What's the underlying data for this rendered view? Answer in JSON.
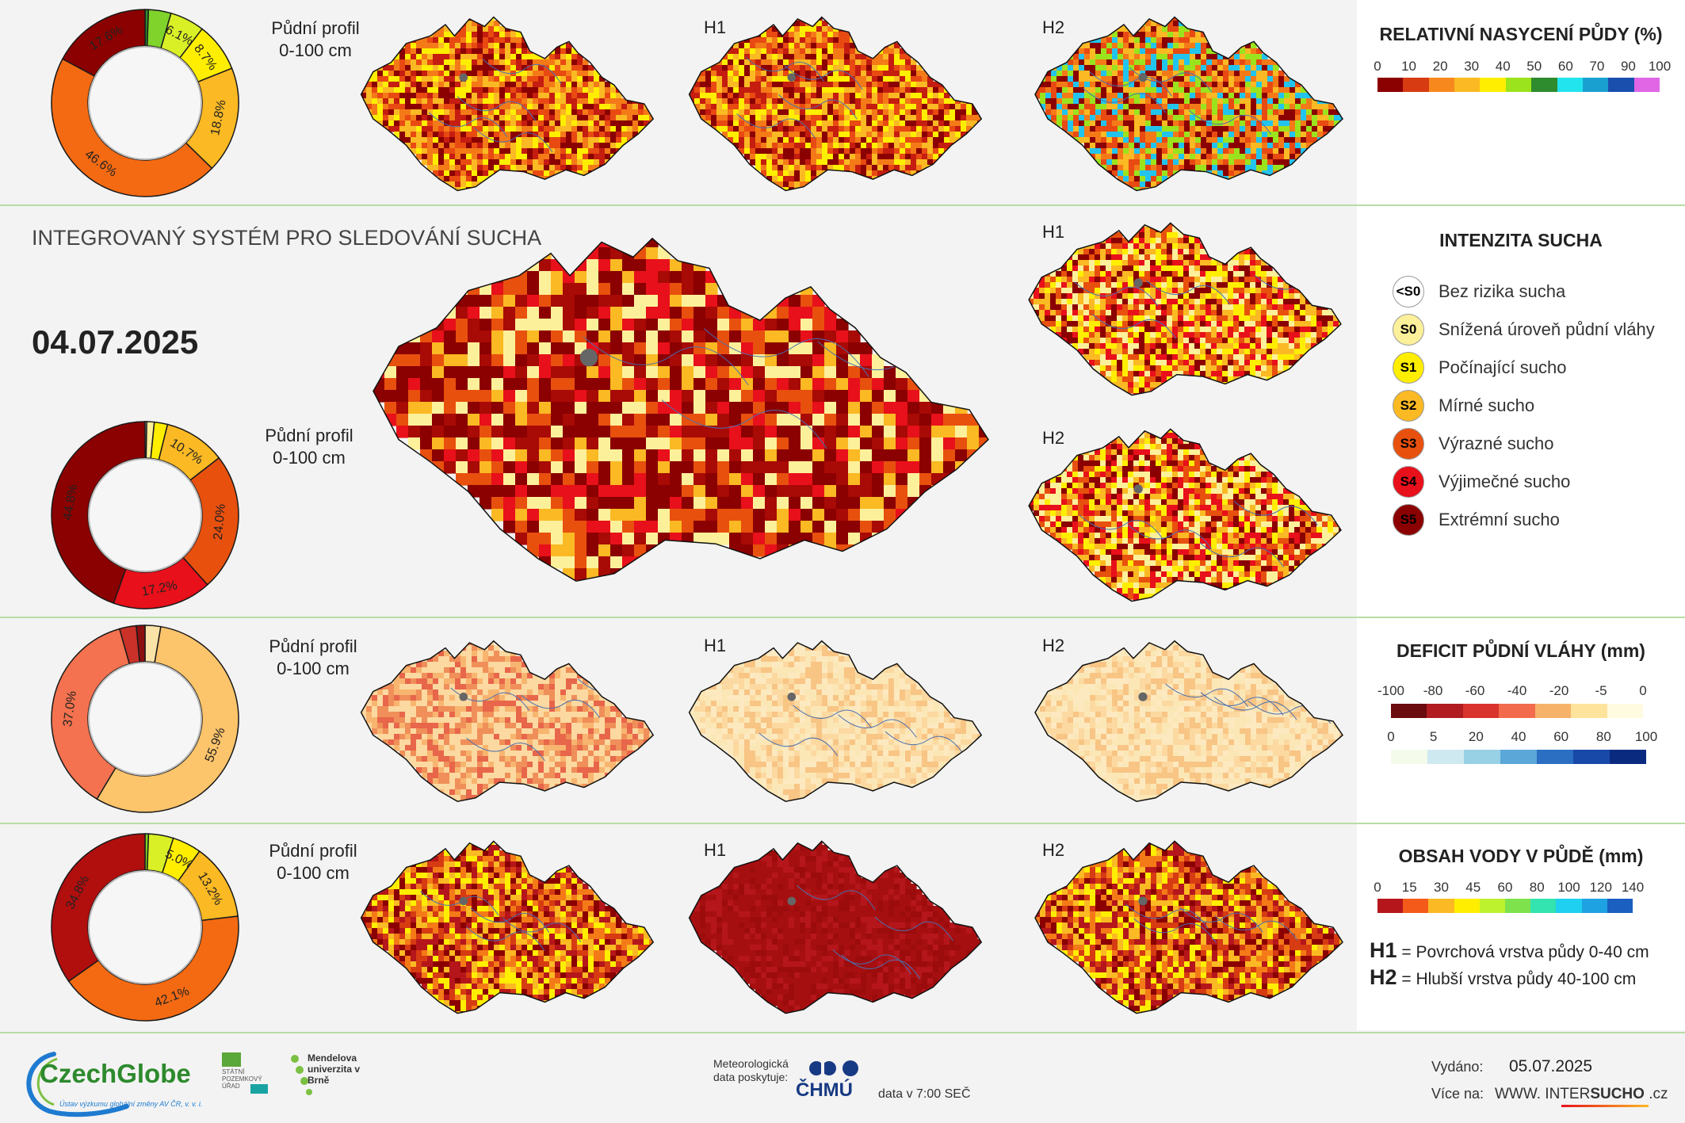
{
  "header": {
    "system_title": "INTEGROVANÝ SYSTÉM PRO SLEDOVÁNÍ SUCHA",
    "date": "04.07.2025"
  },
  "labels": {
    "profile_line1": "Půdní profil",
    "profile_line2": "0-100 cm",
    "h1": "H1",
    "h2": "H2"
  },
  "rows": [
    {
      "id": "saturation",
      "legend_title": "RELATIVNÍ NASYCENÍ PŮDY (%)",
      "ticks": [
        "0",
        "10",
        "20",
        "30",
        "40",
        "50",
        "60",
        "70",
        "90",
        "100"
      ],
      "ramp_colors": [
        "#8b0000",
        "#d63b12",
        "#f7881d",
        "#fbb923",
        "#ffee00",
        "#9be31d",
        "#2e8b2e",
        "#22e4ee",
        "#1aa0d0",
        "#1b4fae",
        "#e066e6"
      ],
      "donut_colors": [
        "#2e8b2e",
        "#7fd32a",
        "#d9f026",
        "#ffee00",
        "#fbb923",
        "#f46a12",
        "#8b0000"
      ],
      "donut_values": [
        0.6,
        4.0,
        6.1,
        8.7,
        18.8,
        46.6,
        17.6
      ],
      "donut_labels": [
        "",
        "",
        "6.1%",
        "8.7%",
        "18.8%",
        "46.6%",
        "17.6%"
      ]
    },
    {
      "id": "intensity",
      "legend_title": "INTENZITA SUCHA",
      "donut_colors": [
        "#ffffff",
        "#fdf09a",
        "#ffee00",
        "#fbb923",
        "#e8500e",
        "#e8101a",
        "#8b0000"
      ],
      "donut_values": [
        0.3,
        1.3,
        2.3,
        10.7,
        24.0,
        17.2,
        44.8
      ],
      "donut_labels": [
        "",
        "",
        "",
        "10.7%",
        "24.0%",
        "17.2%",
        "44.8%"
      ]
    },
    {
      "id": "deficit",
      "legend_title": "DEFICIT PŮDNÍ VLÁHY (mm)",
      "ticks_neg": [
        "-100",
        "-80",
        "-60",
        "-40",
        "-20",
        "-5",
        "0"
      ],
      "ramp_neg": [
        "#6b0a0f",
        "#b01c20",
        "#d8332c",
        "#f26b4c",
        "#f7b26a",
        "#fde39b",
        "#fffbe0"
      ],
      "ticks_pos": [
        "0",
        "5",
        "20",
        "40",
        "60",
        "80",
        "100"
      ],
      "ramp_pos": [
        "#f4fbea",
        "#cfe9f1",
        "#98d0e6",
        "#5aa7d8",
        "#2a6fc1",
        "#1848a8",
        "#0a2a80"
      ],
      "donut_colors": [
        "#fbe3a8",
        "#fcc46b",
        "#f4724f",
        "#c93129",
        "#8b0e10"
      ],
      "donut_values": [
        2.7,
        55.9,
        37.0,
        2.9,
        1.5
      ],
      "donut_labels": [
        "",
        "55.9%",
        "37.0%",
        "",
        ""
      ]
    },
    {
      "id": "water",
      "legend_title": "OBSAH VODY V PŮDĚ (mm)",
      "ticks": [
        "0",
        "15",
        "30",
        "45",
        "60",
        "80",
        "100",
        "120",
        "140"
      ],
      "ramp_colors": [
        "#b5161b",
        "#f45b1a",
        "#fbb923",
        "#ffee00",
        "#bdf22f",
        "#7ee24d",
        "#33e3b0",
        "#1fd0f0",
        "#1ea2e2",
        "#1b5fc0"
      ],
      "donut_colors": [
        "#7fd32a",
        "#d9f026",
        "#ffee00",
        "#fbb923",
        "#f46a12",
        "#b10e0e"
      ],
      "donut_values": [
        0.6,
        4.3,
        5.0,
        13.2,
        42.1,
        34.8
      ],
      "donut_labels": [
        "",
        "",
        "5.0%",
        "13.2%",
        "42.1%",
        "34.8%"
      ]
    }
  ],
  "intensity_classes": [
    {
      "code": "<S0",
      "label": "Bez rizika sucha",
      "color": "#ffffff",
      "text": "#000000"
    },
    {
      "code": "S0",
      "label": "Snížená úroveň půdní vláhy",
      "color": "#fdf09a",
      "text": "#000000"
    },
    {
      "code": "S1",
      "label": "Počínající sucho",
      "color": "#ffee00",
      "text": "#000000"
    },
    {
      "code": "S2",
      "label": "Mírné sucho",
      "color": "#fbb923",
      "text": "#000000"
    },
    {
      "code": "S3",
      "label": "Výrazné sucho",
      "color": "#e8500e",
      "text": "#000000"
    },
    {
      "code": "S4",
      "label": "Výjimečné sucho",
      "color": "#e8101a",
      "text": "#000000"
    },
    {
      "code": "S5",
      "label": "Extrémní sucho",
      "color": "#8b0000",
      "text": "#000000"
    }
  ],
  "layers": {
    "h1_code": "H1",
    "h1_desc": "= Povrchová vrstva půdy 0-40 cm",
    "h2_code": "H2",
    "h2_desc": "= Hlubší vrstva půdy 40-100 cm"
  },
  "footer": {
    "czechglobe": "CzechGlobe",
    "czechglobe_sub": "Ústav výzkumu globální změny AV ČR, v. v. i.",
    "spu": "STÁTNÍ POZEMKOVÝ ÚŘAD",
    "mendel": "Mendelova univerzita v Brně",
    "met_data": "Meteorologická data poskytuje:",
    "chmu": "ČHMÚ",
    "data_time": "data v 7:00 SEČ",
    "issued_label": "Vydáno:",
    "issued_date": "05.07.2025",
    "more_label": "Více na:",
    "website_pre": "WWW. INTER",
    "website_bold": "SUCHO",
    "website_post": " .cz"
  }
}
